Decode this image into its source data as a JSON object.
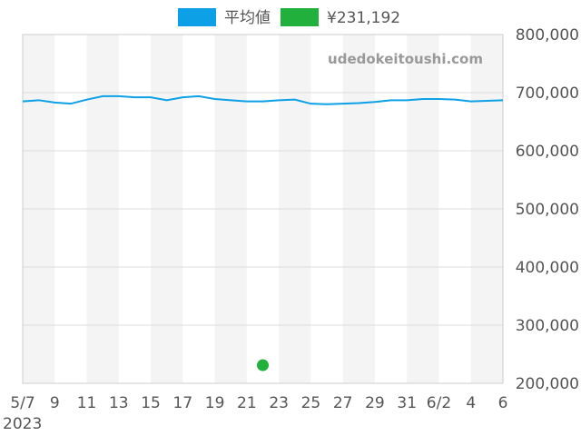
{
  "watermark": "udedokeitoushi.com",
  "colors": {
    "average": "#0da0e6",
    "sold": "#21b03c",
    "band": "#f4f4f4",
    "grid": "#dddddd",
    "axis": "#cccccc"
  },
  "chart_data": {
    "type": "line",
    "legend": [
      {
        "label": "平均値",
        "color": "#0da0e6"
      },
      {
        "label": "¥231,192",
        "color": "#21b03c"
      }
    ],
    "legend_position": "top-center",
    "grid": true,
    "x_tick_labels": [
      "5/7",
      "9",
      "11",
      "13",
      "15",
      "17",
      "19",
      "21",
      "23",
      "25",
      "27",
      "29",
      "31",
      "6/2",
      "4",
      "6"
    ],
    "x_year_label": "2023",
    "y_tick_labels": [
      "200,000",
      "300,000",
      "400,000",
      "500,000",
      "600,000",
      "700,000",
      "800,000"
    ],
    "ylim": [
      200000,
      800000
    ],
    "x": [
      "5/7",
      "5/8",
      "5/9",
      "5/10",
      "5/11",
      "5/12",
      "5/13",
      "5/14",
      "5/15",
      "5/16",
      "5/17",
      "5/18",
      "5/19",
      "5/20",
      "5/21",
      "5/22",
      "5/23",
      "5/24",
      "5/25",
      "5/26",
      "5/27",
      "5/28",
      "5/29",
      "5/30",
      "5/31",
      "6/1",
      "6/2",
      "6/3",
      "6/4",
      "6/5",
      "6/6"
    ],
    "series": [
      {
        "name": "平均値",
        "values": [
          685000,
          687000,
          683000,
          681000,
          688000,
          694000,
          694000,
          692000,
          692000,
          687000,
          692000,
          694000,
          689000,
          687000,
          685000,
          685000,
          687000,
          688000,
          681000,
          680000,
          681000,
          682000,
          684000,
          687000,
          687000,
          689000,
          689000,
          688000,
          685000,
          686000,
          687000
        ]
      },
      {
        "name": "¥231,192",
        "points": [
          {
            "x": "5/22",
            "y": 231192
          }
        ]
      }
    ]
  }
}
